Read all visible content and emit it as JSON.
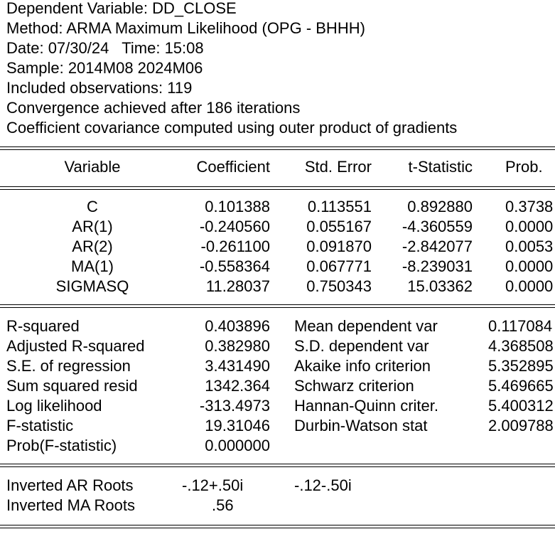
{
  "header": {
    "dependent": "Dependent Variable: DD_CLOSE",
    "method": "Method: ARMA Maximum Likelihood (OPG - BHHH)",
    "date": "Date: 07/30/24   Time: 15:08",
    "sample": "Sample: 2014M08 2024M06",
    "observations": "Included observations: 119",
    "convergence": "Convergence achieved after 186 iterations",
    "covariance": "Coefficient covariance computed using outer product of gradients"
  },
  "columns": [
    "Variable",
    "Coefficient",
    "Std. Error",
    "t-Statistic",
    "Prob."
  ],
  "rows": [
    [
      "C",
      "0.101388",
      "0.113551",
      "0.892880",
      "0.3738"
    ],
    [
      "AR(1)",
      "-0.240560",
      "0.055167",
      "-4.360559",
      "0.0000"
    ],
    [
      "AR(2)",
      "-0.261100",
      "0.091870",
      "-2.842077",
      "0.0053"
    ],
    [
      "MA(1)",
      "-0.558364",
      "0.067771",
      "-8.239031",
      "0.0000"
    ],
    [
      "SIGMASQ",
      "11.28037",
      "0.750343",
      "15.03362",
      "0.0000"
    ]
  ],
  "stats": [
    [
      "R-squared",
      "0.403896",
      "Mean dependent var",
      "0.117084"
    ],
    [
      "Adjusted R-squared",
      "0.382980",
      "S.D. dependent var",
      "4.368508"
    ],
    [
      "S.E. of regression",
      "3.431490",
      "Akaike info criterion",
      "5.352895"
    ],
    [
      "Sum squared resid",
      "1342.364",
      "Schwarz criterion",
      "5.469665"
    ],
    [
      "Log likelihood",
      "-313.4973",
      "Hannan-Quinn criter.",
      "5.400312"
    ],
    [
      "F-statistic",
      "19.31046",
      "Durbin-Watson stat",
      "2.009788"
    ],
    [
      "Prob(F-statistic)",
      "0.000000",
      "",
      ""
    ]
  ],
  "roots": [
    [
      "Inverted AR Roots",
      "-.12+.50i",
      "-.12-.50i"
    ],
    [
      "Inverted MA Roots",
      ".56",
      ""
    ]
  ]
}
